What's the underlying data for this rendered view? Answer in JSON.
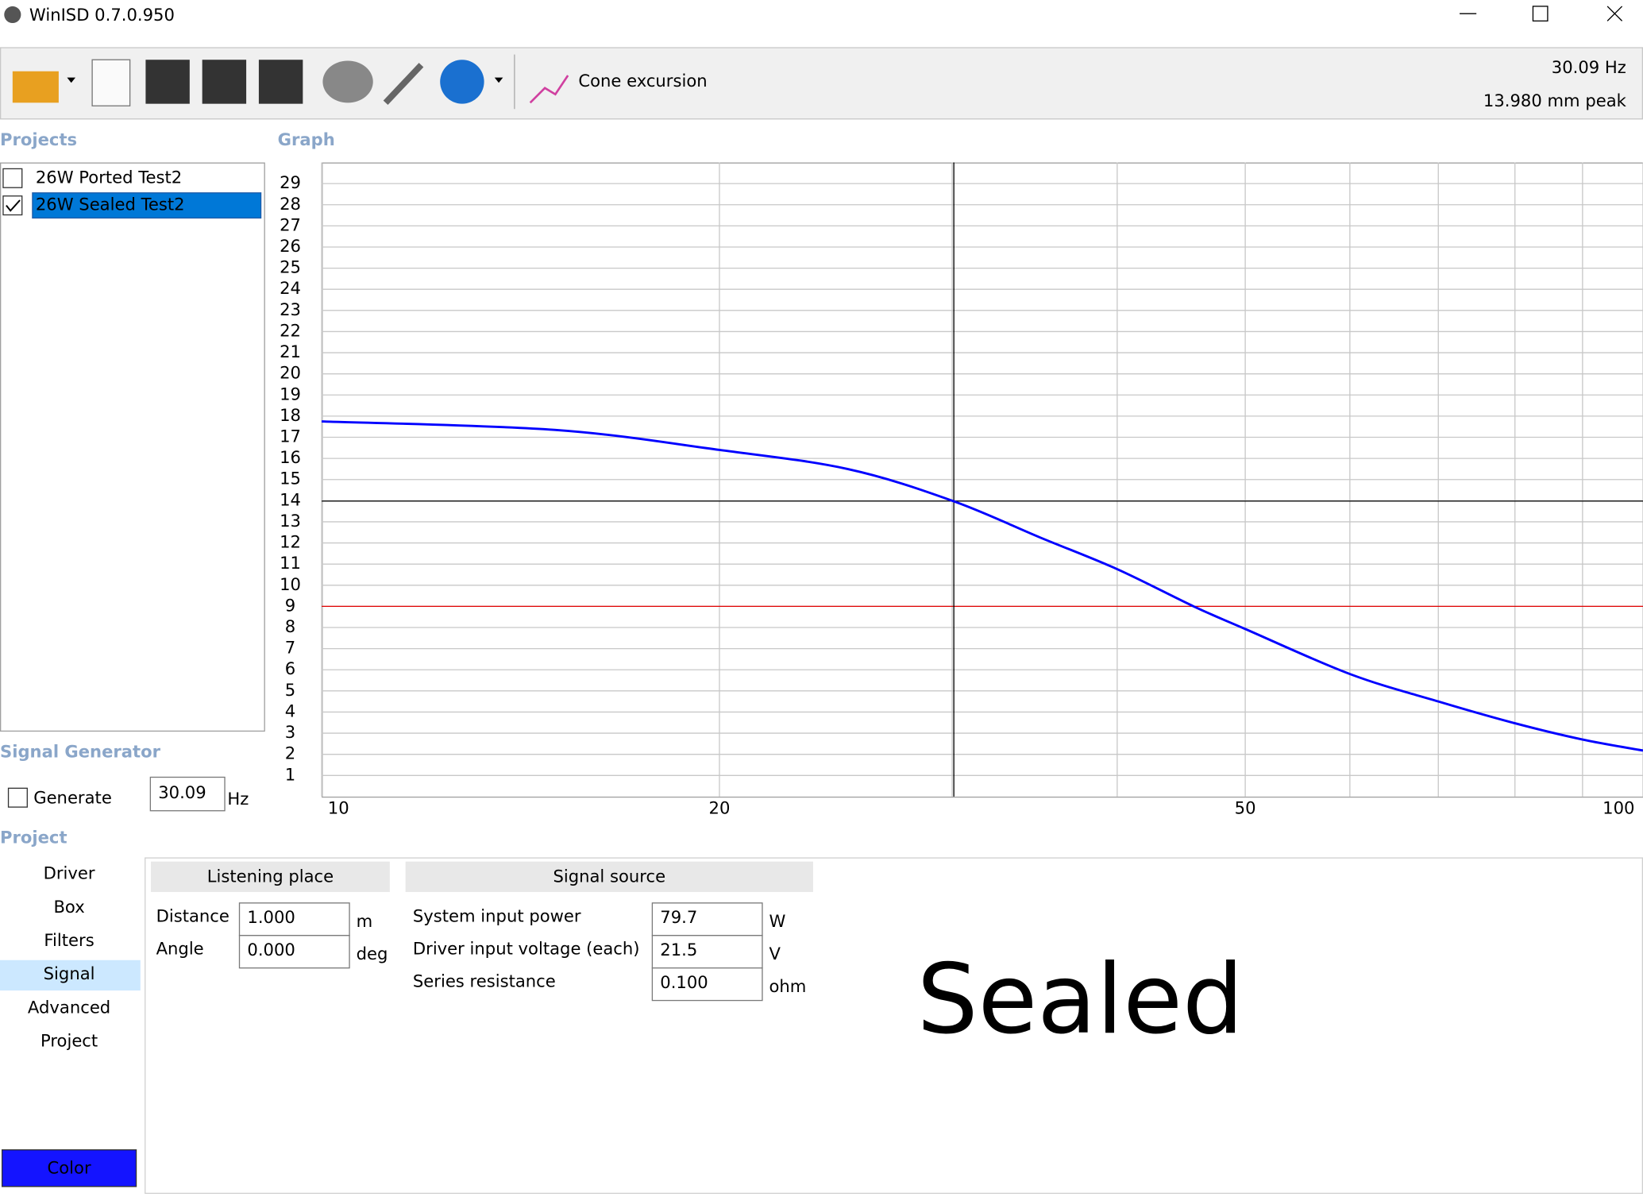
{
  "window": {
    "title": "WinISD 0.7.0.950"
  },
  "toolbar": {
    "graph_name": "Cone excursion",
    "readout_freq": "30.09 Hz",
    "readout_value": "13.980 mm peak"
  },
  "projects": {
    "title": "Projects",
    "items": [
      {
        "name": "26W Ported Test2",
        "checked": false
      },
      {
        "name": "26W Sealed Test2",
        "checked": true
      }
    ],
    "selected": 1
  },
  "graph_title": "Graph",
  "signal_generator": {
    "title": "Signal Generator",
    "generate_label": "Generate",
    "frequency": "30.09",
    "unit": "Hz"
  },
  "project_panel": {
    "title": "Project",
    "tabs": [
      "Driver",
      "Box",
      "Filters",
      "Signal",
      "Advanced",
      "Project"
    ],
    "active_tab": 3,
    "color_button": "Color",
    "listening_place": {
      "title": "Listening place",
      "rows": [
        [
          "Distance",
          "1.000",
          "m"
        ],
        [
          "Angle",
          "0.000",
          "deg"
        ]
      ]
    },
    "signal_source": {
      "title": "Signal source",
      "rows": [
        [
          "System input power",
          "79.7",
          "W"
        ],
        [
          "Driver input voltage (each)",
          "21.5",
          "V"
        ],
        [
          "Series resistance",
          "0.100",
          "ohm"
        ]
      ]
    }
  },
  "watermark": "Sealed",
  "chart_data": {
    "type": "line",
    "x": [
      10,
      15,
      20,
      25,
      30,
      35,
      40,
      45.7,
      50,
      60,
      70,
      80,
      90,
      100
    ],
    "series": [
      {
        "color": "#0000ff",
        "values": [
          17.75,
          17.35,
          16.4,
          15.5,
          14.0,
          12.25,
          10.76,
          9,
          7.93,
          5.8,
          4.5,
          3.47,
          2.7,
          2.18
        ]
      }
    ],
    "xlim": [
      10,
      100
    ],
    "xscale": "log",
    "xticks": [
      10,
      20,
      50,
      100
    ],
    "xminor": [
      30,
      40,
      60,
      70,
      80,
      90
    ],
    "ylim": [
      0,
      30
    ],
    "yticks": [
      1,
      2,
      3,
      4,
      5,
      6,
      7,
      8,
      9,
      10,
      11,
      12,
      13,
      14,
      15,
      16,
      17,
      18,
      19,
      20,
      21,
      22,
      23,
      24,
      25,
      26,
      27,
      28,
      29
    ],
    "grid": true,
    "cursor": {
      "x": 30.09,
      "y": 13.98,
      "color": "#000000"
    },
    "limit_line": {
      "y": 9,
      "color": "#e00000"
    }
  }
}
